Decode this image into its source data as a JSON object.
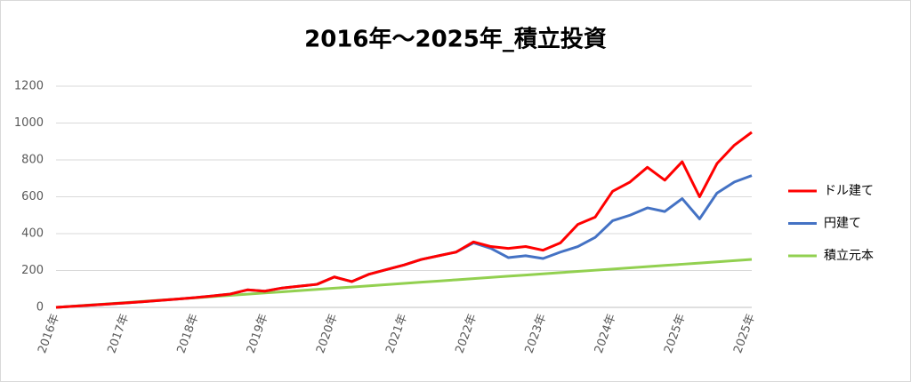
{
  "chart_data": {
    "type": "line",
    "title": "2016年～2025年_積立投資",
    "categories": [
      "2016年",
      null,
      null,
      null,
      "2017年",
      null,
      null,
      null,
      "2018年",
      null,
      null,
      null,
      "2019年",
      null,
      null,
      null,
      "2020年",
      null,
      null,
      null,
      "2021年",
      null,
      null,
      null,
      "2022年",
      null,
      null,
      null,
      "2023年",
      null,
      null,
      null,
      "2024年",
      null,
      null,
      null,
      "2025年",
      null,
      null,
      null,
      "2025年"
    ],
    "series": [
      {
        "name": "ドル建て",
        "color": "#ff0000",
        "values": [
          0,
          6,
          12,
          18,
          24,
          31,
          38,
          45,
          53,
          62,
          72,
          95,
          88,
          105,
          115,
          125,
          165,
          140,
          180,
          205,
          230,
          260,
          280,
          300,
          355,
          330,
          320,
          330,
          310,
          350,
          450,
          490,
          630,
          680,
          760,
          690,
          790,
          600,
          780,
          880,
          950
        ]
      },
      {
        "name": "円建て",
        "color": "#4472c4",
        "values": [
          0,
          6,
          12,
          18,
          24,
          31,
          38,
          45,
          53,
          62,
          72,
          95,
          88,
          105,
          115,
          125,
          165,
          140,
          180,
          205,
          230,
          260,
          280,
          300,
          350,
          320,
          270,
          280,
          265,
          300,
          330,
          380,
          470,
          500,
          540,
          520,
          590,
          480,
          620,
          680,
          715
        ]
      },
      {
        "name": "積立元本",
        "color": "#92d050",
        "values": [
          0,
          6.5,
          13,
          19.5,
          26,
          32.5,
          39,
          45.5,
          52,
          58.5,
          65,
          71.5,
          78,
          84.5,
          91,
          97.5,
          104,
          110.5,
          117,
          123.5,
          130,
          136.5,
          143,
          149.5,
          156,
          162.5,
          169,
          175.5,
          182,
          188.5,
          195,
          201.5,
          208,
          214.5,
          221,
          227.5,
          234,
          240.5,
          247,
          253.5,
          260
        ]
      }
    ],
    "ylim": [
      0,
      1200
    ],
    "yticks": [
      0,
      200,
      400,
      600,
      800,
      1000,
      1200
    ],
    "grid": true,
    "legend": "right"
  }
}
